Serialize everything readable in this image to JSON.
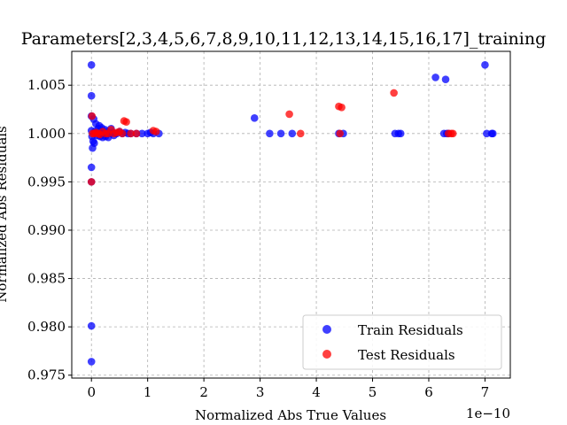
{
  "chart_data": {
    "type": "scatter",
    "title": "Parameters[2,3,4,5,6,7,8,9,10,11,12,13,14,15,16,17]_training",
    "xlabel": "Normalized Abs True Values",
    "ylabel": "Normalized Abs Residuals",
    "x_offset_label": "1e−10",
    "x_scale": 1e-10,
    "xlim": [
      -0.35,
      7.45
    ],
    "ylim": [
      0.9747,
      1.0085
    ],
    "x_ticks": [
      0,
      1,
      2,
      3,
      4,
      5,
      6,
      7
    ],
    "x_tick_labels": [
      "0",
      "1",
      "2",
      "3",
      "4",
      "5",
      "6",
      "7"
    ],
    "y_ticks": [
      0.975,
      0.98,
      0.985,
      0.99,
      0.995,
      1.0,
      1.005
    ],
    "y_tick_labels": [
      "0.975",
      "0.980",
      "0.985",
      "0.990",
      "0.995",
      "1.000",
      "1.005"
    ],
    "grid": true,
    "legend_position": "bottom-right",
    "series": [
      {
        "name": "Train Residuals",
        "color": "#0000ff",
        "x": [
          0.0,
          0.0,
          0.0,
          0.0,
          0.0,
          0.0,
          0.0,
          0.0,
          0.01,
          0.02,
          0.03,
          0.04,
          0.05,
          0.06,
          0.08,
          0.1,
          0.12,
          0.14,
          0.15,
          0.17,
          0.18,
          0.2,
          0.22,
          0.24,
          0.25,
          0.28,
          0.3,
          0.33,
          0.35,
          0.38,
          0.4,
          0.45,
          0.5,
          0.55,
          0.6,
          0.65,
          0.7,
          0.8,
          0.9,
          1.0,
          1.05,
          1.1,
          1.2,
          2.9,
          3.17,
          3.37,
          3.57,
          4.4,
          4.48,
          5.4,
          5.46,
          5.5,
          6.12,
          6.27,
          6.3,
          6.32,
          6.35,
          7.0,
          7.03,
          7.12,
          7.14
        ],
        "y": [
          1.0071,
          1.0039,
          1.0018,
          0.9965,
          0.995,
          0.9801,
          0.9764,
          1.0003,
          0.9997,
          0.9985,
          0.9992,
          1.0015,
          0.999,
          1.0002,
          1.001,
          0.9998,
          1.0005,
          1.0008,
          0.9997,
          1.0,
          1.0006,
          0.9996,
          1.0,
          1.0004,
          0.9997,
          1.0002,
          0.9996,
          1.0,
          1.0005,
          1.0001,
          0.9998,
          1.0,
          1.0002,
          1.0,
          1.0001,
          1.0,
          1.0,
          1.0,
          1.0,
          1.0,
          1.0001,
          1.0,
          1.0,
          1.0016,
          1.0,
          1.0,
          1.0,
          1.0,
          1.0,
          1.0,
          1.0,
          1.0,
          1.0058,
          1.0,
          1.0056,
          1.0,
          1.0,
          1.0071,
          1.0,
          1.0,
          1.0
        ]
      },
      {
        "name": "Test Residuals",
        "color": "#ff0000",
        "x": [
          0.0,
          0.01,
          0.02,
          0.05,
          0.08,
          0.12,
          0.15,
          0.2,
          0.25,
          0.3,
          0.35,
          0.4,
          0.45,
          0.5,
          0.55,
          0.58,
          0.62,
          0.7,
          0.8,
          1.1,
          1.15,
          3.52,
          3.72,
          4.4,
          4.42,
          4.45,
          5.38,
          6.35,
          6.4,
          6.43
        ],
        "y": [
          0.995,
          1.0018,
          1.0,
          1.0,
          1.0001,
          1.0,
          0.9999,
          1.0002,
          1.0,
          1.0,
          1.0004,
          1.0,
          1.0001,
          1.0002,
          1.0,
          1.0013,
          1.0012,
          1.0,
          1.0,
          1.0003,
          1.0002,
          1.002,
          1.0,
          1.0028,
          1.0,
          1.0027,
          1.0042,
          1.0,
          1.0,
          1.0
        ]
      }
    ]
  }
}
